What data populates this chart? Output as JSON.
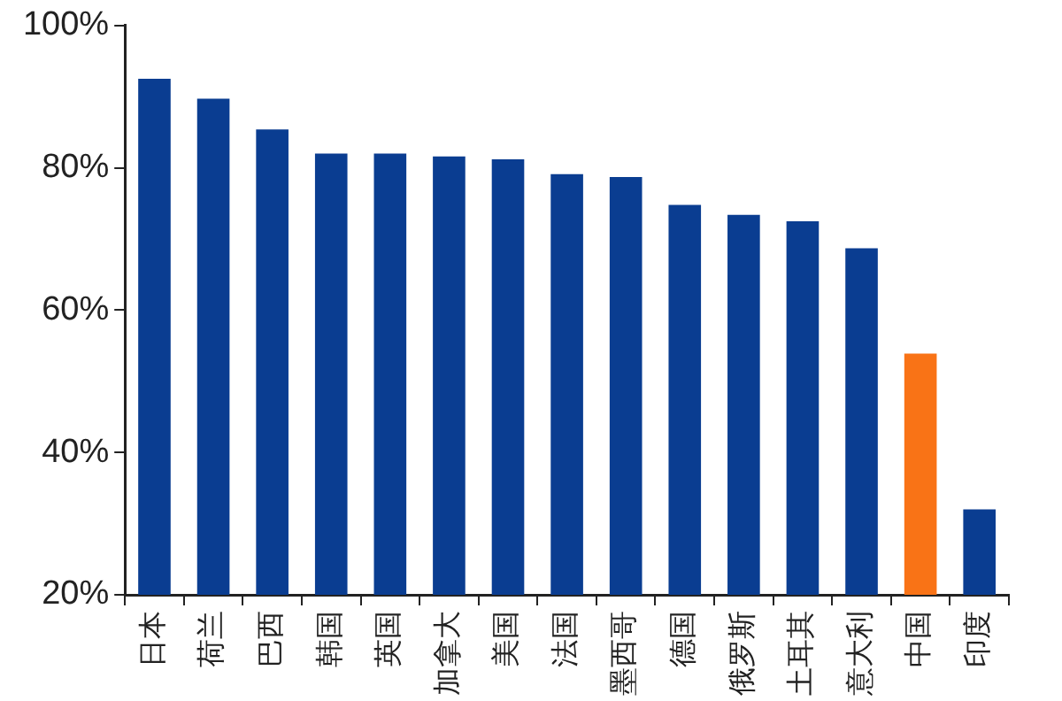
{
  "chart_data": {
    "type": "bar",
    "categories": [
      "日本",
      "荷兰",
      "巴西",
      "韩国",
      "英国",
      "加拿大",
      "美国",
      "法国",
      "墨西哥",
      "德国",
      "俄罗斯",
      "土耳其",
      "意大利",
      "中国",
      "印度"
    ],
    "values": [
      92.5,
      89.7,
      85.4,
      82.0,
      82.0,
      81.6,
      81.2,
      79.1,
      78.7,
      74.8,
      73.4,
      72.5,
      68.7,
      53.9,
      32.0
    ],
    "colors": [
      "#0a3d91",
      "#0a3d91",
      "#0a3d91",
      "#0a3d91",
      "#0a3d91",
      "#0a3d91",
      "#0a3d91",
      "#0a3d91",
      "#0a3d91",
      "#0a3d91",
      "#0a3d91",
      "#0a3d91",
      "#0a3d91",
      "#f97316",
      "#0a3d91"
    ],
    "ylim": [
      20,
      100
    ],
    "yticks": [
      {
        "value": 20,
        "label": "20%"
      },
      {
        "value": 40,
        "label": "40%"
      },
      {
        "value": 60,
        "label": "60%"
      },
      {
        "value": 80,
        "label": "80%"
      },
      {
        "value": 100,
        "label": "100%"
      }
    ],
    "grid": false,
    "legend": false
  }
}
